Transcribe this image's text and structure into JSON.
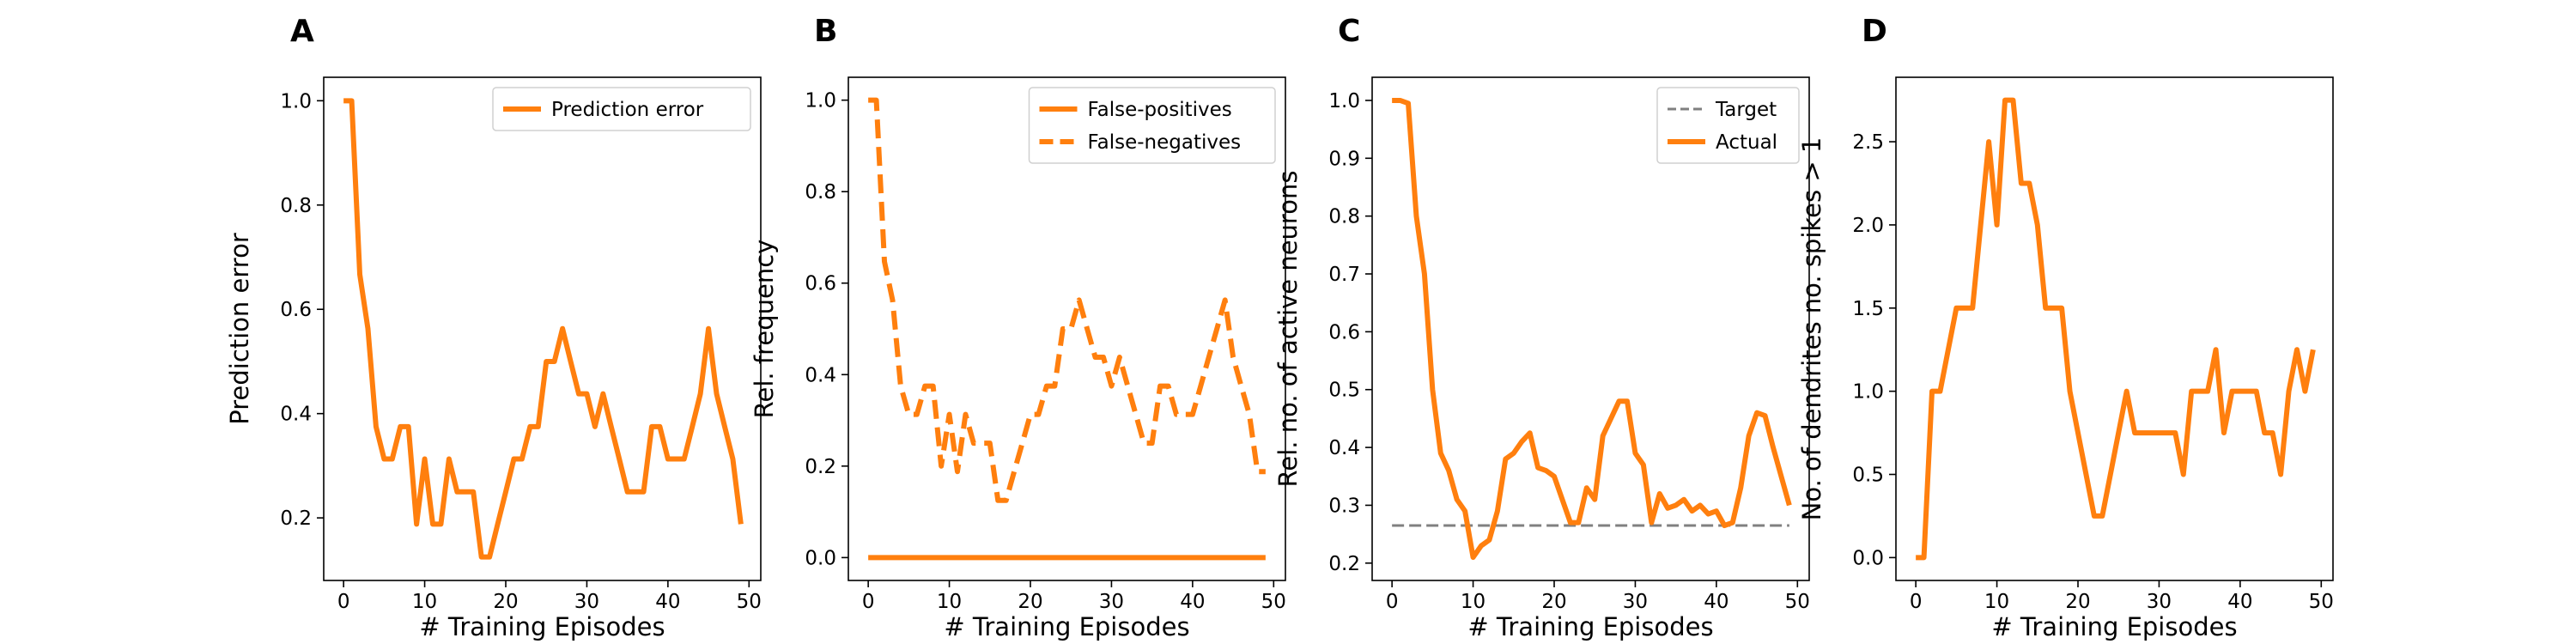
{
  "chart_data": [
    {
      "panel": "A",
      "type": "line",
      "xlabel": "# Training Episodes",
      "ylabel": "Prediction error",
      "xlim": [
        -2.45,
        51.45
      ],
      "ylim": [
        0.08,
        1.045
      ],
      "xticks": [
        0,
        10,
        20,
        30,
        40,
        50
      ],
      "yticks": [
        0.2,
        0.4,
        0.6,
        0.8,
        1.0
      ],
      "ytick_format": 1,
      "legend": "top-right",
      "color": "#ff7f0e",
      "x": [
        0,
        1,
        2,
        3,
        4,
        5,
        6,
        7,
        8,
        9,
        10,
        11,
        12,
        13,
        14,
        15,
        16,
        17,
        18,
        19,
        20,
        21,
        22,
        23,
        24,
        25,
        26,
        27,
        28,
        29,
        30,
        31,
        32,
        33,
        34,
        35,
        36,
        37,
        38,
        39,
        40,
        41,
        42,
        43,
        44,
        45,
        46,
        47,
        48,
        49
      ],
      "series": [
        {
          "name": "Prediction error",
          "style": "solid",
          "values": [
            1.0,
            1.0,
            0.667,
            0.563,
            0.375,
            0.313,
            0.313,
            0.375,
            0.375,
            0.188,
            0.313,
            0.188,
            0.188,
            0.313,
            0.25,
            0.25,
            0.25,
            0.125,
            0.125,
            0.188,
            0.25,
            0.313,
            0.313,
            0.375,
            0.375,
            0.5,
            0.5,
            0.563,
            0.5,
            0.438,
            0.438,
            0.375,
            0.438,
            0.375,
            0.313,
            0.25,
            0.25,
            0.25,
            0.375,
            0.375,
            0.313,
            0.313,
            0.313,
            0.375,
            0.438,
            0.563,
            0.438,
            0.375,
            0.313,
            0.188
          ]
        }
      ]
    },
    {
      "panel": "B",
      "type": "line",
      "xlabel": "# Training Episodes",
      "ylabel": "Rel. frequency",
      "xlim": [
        -2.45,
        51.45
      ],
      "ylim": [
        -0.05,
        1.05
      ],
      "xticks": [
        0,
        10,
        20,
        30,
        40,
        50
      ],
      "yticks": [
        0.0,
        0.2,
        0.4,
        0.6,
        0.8,
        1.0
      ],
      "ytick_format": 1,
      "legend": "top-right",
      "color": "#ff7f0e",
      "x": [
        0,
        1,
        2,
        3,
        4,
        5,
        6,
        7,
        8,
        9,
        10,
        11,
        12,
        13,
        14,
        15,
        16,
        17,
        18,
        19,
        20,
        21,
        22,
        23,
        24,
        25,
        26,
        27,
        28,
        29,
        30,
        31,
        32,
        33,
        34,
        35,
        36,
        37,
        38,
        39,
        40,
        41,
        42,
        43,
        44,
        45,
        46,
        47,
        48,
        49
      ],
      "series": [
        {
          "name": "False-positives",
          "style": "solid",
          "values": [
            0,
            0,
            0,
            0,
            0,
            0,
            0,
            0,
            0,
            0,
            0,
            0,
            0,
            0,
            0,
            0,
            0,
            0,
            0,
            0,
            0,
            0,
            0,
            0,
            0,
            0,
            0,
            0,
            0,
            0,
            0,
            0,
            0,
            0,
            0,
            0,
            0,
            0,
            0,
            0,
            0,
            0,
            0,
            0,
            0,
            0,
            0,
            0,
            0,
            0
          ]
        },
        {
          "name": "False-negatives",
          "style": "dashed",
          "values": [
            1.0,
            1.0,
            0.647,
            0.563,
            0.375,
            0.313,
            0.313,
            0.375,
            0.375,
            0.2,
            0.313,
            0.188,
            0.313,
            0.25,
            0.25,
            0.25,
            0.125,
            0.125,
            0.188,
            0.25,
            0.313,
            0.313,
            0.375,
            0.375,
            0.5,
            0.5,
            0.563,
            0.5,
            0.438,
            0.438,
            0.375,
            0.438,
            0.375,
            0.313,
            0.25,
            0.25,
            0.375,
            0.375,
            0.313,
            0.313,
            0.313,
            0.375,
            0.438,
            0.5,
            0.563,
            0.438,
            0.375,
            0.313,
            0.188,
            0.188
          ]
        }
      ]
    },
    {
      "panel": "C",
      "type": "line",
      "xlabel": "# Training Episodes",
      "ylabel": "Rel. no. of active neurons",
      "xlim": [
        -2.45,
        51.45
      ],
      "ylim": [
        0.17,
        1.04
      ],
      "xticks": [
        0,
        10,
        20,
        30,
        40,
        50
      ],
      "yticks": [
        0.2,
        0.3,
        0.4,
        0.5,
        0.6,
        0.7,
        0.8,
        0.9,
        1.0
      ],
      "ytick_format": 1,
      "legend": "top-right",
      "color": "#ff7f0e",
      "x": [
        0,
        1,
        2,
        3,
        4,
        5,
        6,
        7,
        8,
        9,
        10,
        11,
        12,
        13,
        14,
        15,
        16,
        17,
        18,
        19,
        20,
        21,
        22,
        23,
        24,
        25,
        26,
        27,
        28,
        29,
        30,
        31,
        32,
        33,
        34,
        35,
        36,
        37,
        38,
        39,
        40,
        41,
        42,
        43,
        44,
        45,
        46,
        47,
        48,
        49
      ],
      "series": [
        {
          "name": "Target",
          "style": "dashed",
          "color": "#808080",
          "values": [
            0.265,
            0.265,
            0.265,
            0.265,
            0.265,
            0.265,
            0.265,
            0.265,
            0.265,
            0.265,
            0.265,
            0.265,
            0.265,
            0.265,
            0.265,
            0.265,
            0.265,
            0.265,
            0.265,
            0.265,
            0.265,
            0.265,
            0.265,
            0.265,
            0.265,
            0.265,
            0.265,
            0.265,
            0.265,
            0.265,
            0.265,
            0.265,
            0.265,
            0.265,
            0.265,
            0.265,
            0.265,
            0.265,
            0.265,
            0.265,
            0.265,
            0.265,
            0.265,
            0.265,
            0.265,
            0.265,
            0.265,
            0.265,
            0.265,
            0.265
          ]
        },
        {
          "name": "Actual",
          "style": "solid",
          "values": [
            1.0,
            1.0,
            0.995,
            0.8,
            0.7,
            0.5,
            0.39,
            0.36,
            0.31,
            0.29,
            0.21,
            0.23,
            0.24,
            0.29,
            0.38,
            0.39,
            0.41,
            0.425,
            0.365,
            0.36,
            0.35,
            0.31,
            0.27,
            0.27,
            0.33,
            0.31,
            0.42,
            0.45,
            0.48,
            0.48,
            0.39,
            0.37,
            0.27,
            0.32,
            0.295,
            0.3,
            0.31,
            0.29,
            0.3,
            0.285,
            0.29,
            0.265,
            0.27,
            0.33,
            0.42,
            0.46,
            0.455,
            0.4,
            0.35,
            0.3
          ]
        }
      ]
    },
    {
      "panel": "D",
      "type": "line",
      "xlabel": "# Training Episodes",
      "ylabel": "No. of dendrites no. spikes > 1",
      "xlim": [
        -2.45,
        51.45
      ],
      "ylim": [
        -0.1375,
        2.8875
      ],
      "xticks": [
        0,
        10,
        20,
        30,
        40,
        50
      ],
      "yticks": [
        0.0,
        0.5,
        1.0,
        1.5,
        2.0,
        2.5
      ],
      "ytick_format": 1,
      "legend": "none",
      "color": "#ff7f0e",
      "x": [
        0,
        1,
        2,
        3,
        4,
        5,
        6,
        7,
        8,
        9,
        10,
        11,
        12,
        13,
        14,
        15,
        16,
        17,
        18,
        19,
        20,
        21,
        22,
        23,
        24,
        25,
        26,
        27,
        28,
        29,
        30,
        31,
        32,
        33,
        34,
        35,
        36,
        37,
        38,
        39,
        40,
        41,
        42,
        43,
        44,
        45,
        46,
        47,
        48,
        49
      ],
      "series": [
        {
          "style": "solid",
          "values": [
            0.0,
            0.0,
            1.0,
            1.0,
            1.25,
            1.5,
            1.5,
            1.5,
            2.0,
            2.5,
            2.0,
            2.75,
            2.75,
            2.25,
            2.25,
            2.0,
            1.5,
            1.5,
            1.5,
            1.0,
            0.75,
            0.5,
            0.25,
            0.25,
            0.5,
            0.75,
            1.0,
            0.75,
            0.75,
            0.75,
            0.75,
            0.75,
            0.75,
            0.5,
            1.0,
            1.0,
            1.0,
            1.25,
            0.75,
            1.0,
            1.0,
            1.0,
            1.0,
            0.75,
            0.75,
            0.5,
            1.0,
            1.25,
            1.0,
            1.25
          ]
        }
      ]
    }
  ]
}
